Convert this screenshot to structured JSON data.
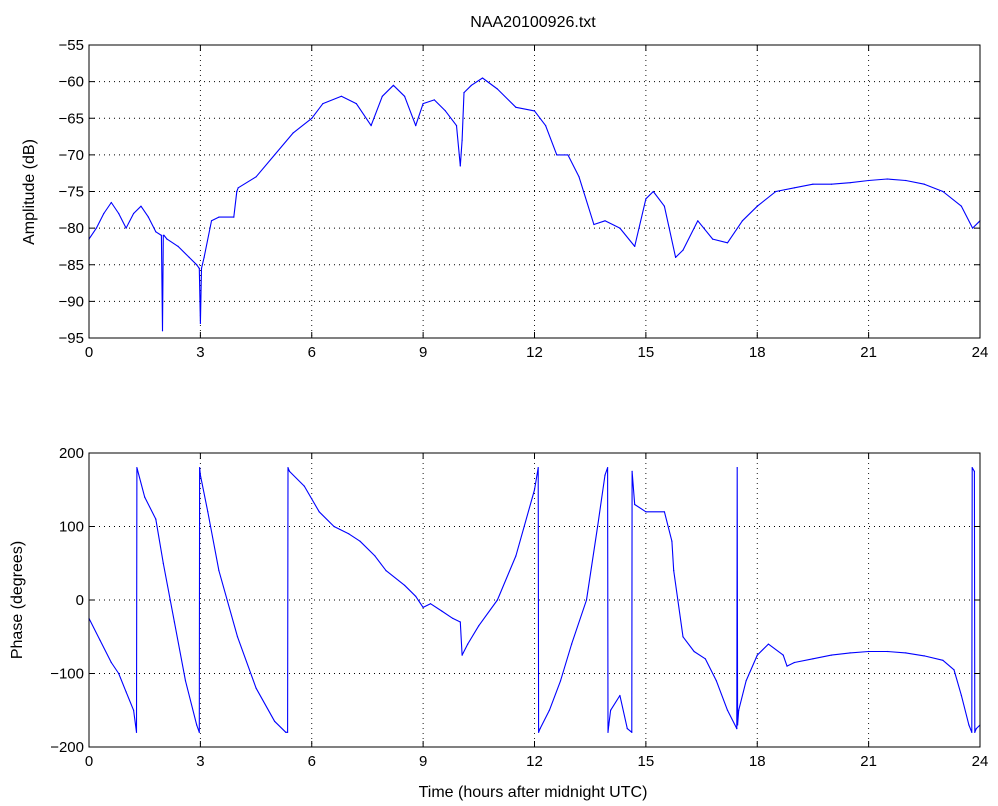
{
  "colors": {
    "series": "#0000ff",
    "axes": "#000000",
    "background": "#ffffff"
  },
  "chart_data": [
    {
      "type": "line",
      "title": "NAA20100926.txt",
      "xlabel": "",
      "ylabel": "Amplitude (dB)",
      "xlim": [
        0,
        24
      ],
      "ylim": [
        -95,
        -55
      ],
      "xticks": [
        0,
        3,
        6,
        9,
        12,
        15,
        18,
        21,
        24
      ],
      "yticks": [
        -95,
        -90,
        -85,
        -80,
        -75,
        -70,
        -65,
        -60,
        -55
      ],
      "grid": true,
      "legend": "none",
      "series": [
        {
          "x": [
            0,
            0.2,
            0.4,
            0.6,
            0.8,
            1.0,
            1.2,
            1.4,
            1.6,
            1.8,
            1.95,
            1.98,
            2.0,
            2.02,
            2.1,
            2.4,
            2.7,
            2.9,
            2.97,
            3.0,
            3.03,
            3.1,
            3.3,
            3.5,
            3.9,
            3.98,
            4.02,
            4.5,
            5.0,
            5.5,
            6.0,
            6.3,
            6.8,
            7.2,
            7.6,
            7.9,
            8.2,
            8.5,
            8.8,
            9.0,
            9.3,
            9.6,
            9.9,
            10.0,
            10.05,
            10.1,
            10.3,
            10.6,
            11.0,
            11.5,
            12.0,
            12.3,
            12.6,
            12.9,
            13.2,
            13.6,
            13.9,
            14.3,
            14.7,
            15.0,
            15.2,
            15.5,
            15.8,
            16.0,
            16.4,
            16.8,
            17.2,
            17.6,
            18.0,
            18.5,
            19.0,
            19.5,
            20.0,
            20.5,
            21.0,
            21.5,
            22.0,
            22.5,
            23.0,
            23.5,
            23.8,
            24.0
          ],
          "y": [
            -81.5,
            -80,
            -78,
            -76.5,
            -78,
            -80,
            -78,
            -77,
            -78.5,
            -80.5,
            -81,
            -94,
            -81,
            -81,
            -81.5,
            -82.5,
            -84,
            -85,
            -85.5,
            -93,
            -85.5,
            -84,
            -79,
            -78.5,
            -78.5,
            -75,
            -74.5,
            -73,
            -70,
            -67,
            -65,
            -63,
            -62,
            -63,
            -66,
            -62,
            -60.5,
            -62,
            -66,
            -63,
            -62.5,
            -64,
            -66,
            -71.5,
            -68,
            -61.5,
            -60.5,
            -59.5,
            -61,
            -63.5,
            -64,
            -66,
            -70,
            -70,
            -73,
            -79.5,
            -79,
            -80,
            -82.5,
            -76,
            -75,
            -77,
            -84,
            -83,
            -79,
            -81.5,
            -82,
            -79,
            -77,
            -75,
            -74.5,
            -74,
            -74,
            -73.8,
            -73.5,
            -73.3,
            -73.5,
            -74,
            -75,
            -77,
            -80,
            -79
          ]
        }
      ]
    },
    {
      "type": "line",
      "title": "",
      "xlabel": "Time (hours after midnight UTC)",
      "ylabel": "Phase (degrees)",
      "xlim": [
        0,
        24
      ],
      "ylim": [
        -200,
        200
      ],
      "xticks": [
        0,
        3,
        6,
        9,
        12,
        15,
        18,
        21,
        24
      ],
      "yticks": [
        -200,
        -100,
        0,
        100,
        200
      ],
      "grid": true,
      "legend": "none",
      "series": [
        {
          "x": [
            0,
            0.3,
            0.6,
            0.8,
            1.0,
            1.2,
            1.28,
            1.29,
            1.3,
            1.5,
            1.8,
            2.0,
            2.3,
            2.6,
            2.9,
            2.97,
            2.98,
            3.0,
            3.2,
            3.5,
            4.0,
            4.5,
            5.0,
            5.3,
            5.35,
            5.36,
            5.4,
            5.8,
            6.2,
            6.6,
            7.0,
            7.3,
            7.7,
            8.0,
            8.5,
            8.8,
            9.0,
            9.2,
            9.5,
            9.8,
            10.0,
            10.05,
            10.2,
            10.5,
            11.0,
            11.5,
            12.0,
            12.1,
            12.11,
            12.15,
            12.4,
            12.7,
            13.0,
            13.4,
            13.7,
            13.9,
            13.97,
            13.98,
            14.0,
            14.05,
            14.3,
            14.5,
            14.62,
            14.63,
            14.7,
            15.0,
            15.5,
            15.7,
            15.75,
            16.0,
            16.3,
            16.6,
            16.9,
            17.2,
            17.45,
            17.46,
            17.47,
            17.5,
            17.7,
            18.0,
            18.3,
            18.7,
            18.8,
            19.0,
            19.5,
            20.0,
            20.5,
            21.0,
            21.5,
            22.0,
            22.5,
            23.0,
            23.3,
            23.5,
            23.7,
            23.78,
            23.79,
            23.85,
            23.86,
            23.9,
            24.0
          ],
          "y": [
            -25,
            -55,
            -85,
            -100,
            -125,
            -150,
            -180,
            180,
            178,
            140,
            110,
            50,
            -30,
            -110,
            -170,
            -180,
            180,
            170,
            120,
            40,
            -50,
            -120,
            -165,
            -180,
            -180,
            180,
            175,
            155,
            120,
            100,
            90,
            80,
            60,
            40,
            20,
            5,
            -10,
            -5,
            -15,
            -25,
            -30,
            -75,
            -60,
            -35,
            0,
            60,
            150,
            180,
            -180,
            -175,
            -150,
            -110,
            -60,
            0,
            100,
            170,
            180,
            -180,
            -170,
            -150,
            -130,
            -175,
            -180,
            175,
            130,
            120,
            120,
            80,
            40,
            -50,
            -70,
            -80,
            -110,
            -150,
            -175,
            180,
            -170,
            -150,
            -110,
            -75,
            -60,
            -75,
            -90,
            -85,
            -80,
            -75,
            -72,
            -70,
            -70,
            -72,
            -76,
            -82,
            -95,
            -130,
            -170,
            -180,
            180,
            175,
            -180,
            -175,
            -170
          ]
        }
      ]
    }
  ]
}
